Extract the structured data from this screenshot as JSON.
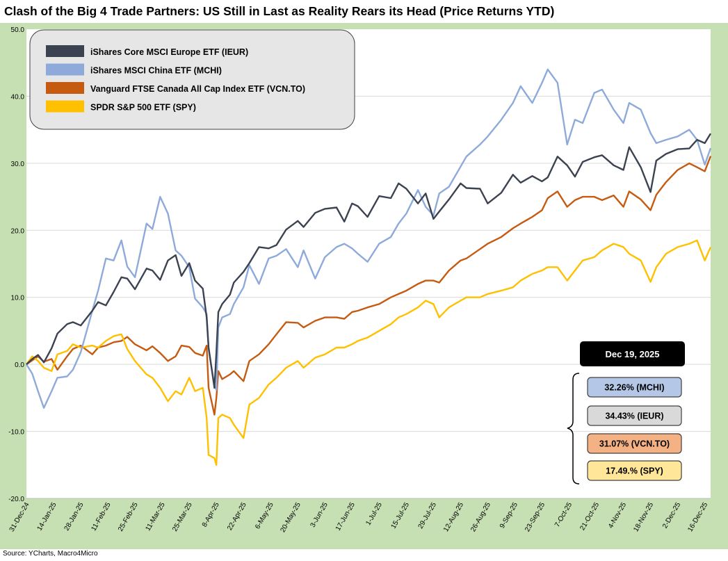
{
  "title": "Clash of the Big 4 Trade Partners: US Still in Last as Reality Rears its Head (Price Returns YTD)",
  "source": "Source: YCharts, Macro4Micro",
  "chart_data": {
    "type": "line",
    "ylim": [
      -20,
      50
    ],
    "yticks": [
      "50.0",
      "40.0",
      "30.0",
      "20.0",
      "10.0",
      "0.0",
      "-10.0",
      "-20.0"
    ],
    "ytick_values": [
      50,
      40,
      30,
      20,
      10,
      0,
      -10,
      -20
    ],
    "x_start": "2024-12-31",
    "x_end": "2025-12-19",
    "xticks": [
      "31-Dec-24",
      "14-Jan-25",
      "28-Jan-25",
      "11-Feb-25",
      "25-Feb-25",
      "11-Mar-25",
      "25-Mar-25",
      "8-Apr-25",
      "22-Apr-25",
      "6-May-25",
      "20-May-25",
      "3-Jun-25",
      "17-Jun-25",
      "1-Jul-25",
      "15-Jul-25",
      "29-Jul-25",
      "12-Aug-25",
      "26-Aug-25",
      "9-Sep-25",
      "23-Sep-25",
      "7-Oct-25",
      "21-Oct-25",
      "4-Nov-25",
      "18-Nov-25",
      "2-Dec-25",
      "16-Dec-25"
    ],
    "grid": true,
    "legend_position": "top-left",
    "background_color": "#c6e0b4",
    "plot_background": "#ffffff",
    "series": [
      {
        "name": "iShares Core MSCI Europe ETF (IEUR)",
        "color": "#3b4250",
        "x": [
          "2024-12-31",
          "2025-01-03",
          "2025-01-06",
          "2025-01-09",
          "2025-01-13",
          "2025-01-16",
          "2025-01-21",
          "2025-01-24",
          "2025-01-28",
          "2025-02-03",
          "2025-02-06",
          "2025-02-10",
          "2025-02-14",
          "2025-02-18",
          "2025-02-21",
          "2025-02-25",
          "2025-03-03",
          "2025-03-06",
          "2025-03-10",
          "2025-03-14",
          "2025-03-18",
          "2025-03-21",
          "2025-03-25",
          "2025-03-28",
          "2025-04-01",
          "2025-04-03",
          "2025-04-04",
          "2025-04-07",
          "2025-04-08",
          "2025-04-09",
          "2025-04-11",
          "2025-04-15",
          "2025-04-17",
          "2025-04-22",
          "2025-04-25",
          "2025-04-30",
          "2025-05-05",
          "2025-05-09",
          "2025-05-14",
          "2025-05-20",
          "2025-05-23",
          "2025-05-29",
          "2025-06-03",
          "2025-06-09",
          "2025-06-13",
          "2025-06-17",
          "2025-06-20",
          "2025-06-25",
          "2025-07-01",
          "2025-07-07",
          "2025-07-11",
          "2025-07-15",
          "2025-07-21",
          "2025-07-25",
          "2025-07-29",
          "2025-08-01",
          "2025-08-06",
          "2025-08-12",
          "2025-08-15",
          "2025-08-22",
          "2025-08-26",
          "2025-09-02",
          "2025-09-08",
          "2025-09-12",
          "2025-09-18",
          "2025-09-23",
          "2025-09-26",
          "2025-10-01",
          "2025-10-06",
          "2025-10-10",
          "2025-10-14",
          "2025-10-20",
          "2025-10-24",
          "2025-10-30",
          "2025-11-04",
          "2025-11-07",
          "2025-11-13",
          "2025-11-18",
          "2025-11-21",
          "2025-11-26",
          "2025-12-02",
          "2025-12-08",
          "2025-12-12",
          "2025-12-16",
          "2025-12-19"
        ],
        "values": [
          0,
          0.8,
          1.4,
          0.3,
          2.4,
          4.6,
          6.0,
          6.3,
          5.8,
          8.0,
          9.3,
          8.8,
          10.8,
          13.0,
          12.8,
          11.2,
          14.3,
          14.0,
          12.6,
          15.5,
          16.3,
          13.2,
          15.1,
          12.5,
          11.3,
          7.0,
          2.5,
          -3.5,
          1.8,
          7.8,
          9.0,
          10.4,
          12.2,
          13.8,
          15.1,
          17.5,
          17.3,
          17.8,
          20.1,
          21.4,
          20.5,
          22.6,
          23.2,
          23.4,
          21.3,
          24.0,
          23.6,
          22.0,
          25.1,
          24.8,
          27.0,
          26.2,
          24.0,
          25.5,
          21.7,
          22.8,
          24.6,
          27.0,
          26.3,
          26.2,
          24.0,
          25.6,
          28.3,
          27.1,
          28.1,
          27.3,
          27.9,
          31.0,
          29.7,
          28.0,
          30.2,
          30.9,
          31.2,
          29.7,
          29.0,
          32.4,
          29.4,
          25.7,
          30.4,
          31.4,
          32.1,
          32.2,
          33.5,
          33.0,
          34.43
        ]
      },
      {
        "name": "iShares MSCI China ETF (MCHI)",
        "color": "#8eaadb",
        "x": [
          "2024-12-31",
          "2025-01-03",
          "2025-01-06",
          "2025-01-09",
          "2025-01-13",
          "2025-01-16",
          "2025-01-21",
          "2025-01-24",
          "2025-01-28",
          "2025-02-03",
          "2025-02-06",
          "2025-02-10",
          "2025-02-14",
          "2025-02-18",
          "2025-02-21",
          "2025-02-25",
          "2025-03-03",
          "2025-03-06",
          "2025-03-10",
          "2025-03-14",
          "2025-03-18",
          "2025-03-21",
          "2025-03-25",
          "2025-03-28",
          "2025-04-01",
          "2025-04-03",
          "2025-04-04",
          "2025-04-07",
          "2025-04-08",
          "2025-04-09",
          "2025-04-11",
          "2025-04-15",
          "2025-04-17",
          "2025-04-22",
          "2025-04-25",
          "2025-04-30",
          "2025-05-05",
          "2025-05-09",
          "2025-05-14",
          "2025-05-20",
          "2025-05-23",
          "2025-05-29",
          "2025-06-03",
          "2025-06-09",
          "2025-06-13",
          "2025-06-17",
          "2025-06-20",
          "2025-06-25",
          "2025-07-01",
          "2025-07-07",
          "2025-07-11",
          "2025-07-15",
          "2025-07-21",
          "2025-07-25",
          "2025-07-29",
          "2025-08-01",
          "2025-08-06",
          "2025-08-12",
          "2025-08-15",
          "2025-08-22",
          "2025-08-26",
          "2025-09-02",
          "2025-09-08",
          "2025-09-12",
          "2025-09-18",
          "2025-09-23",
          "2025-09-26",
          "2025-10-01",
          "2025-10-06",
          "2025-10-10",
          "2025-10-14",
          "2025-10-20",
          "2025-10-24",
          "2025-10-30",
          "2025-11-04",
          "2025-11-07",
          "2025-11-13",
          "2025-11-18",
          "2025-11-21",
          "2025-11-26",
          "2025-12-02",
          "2025-12-08",
          "2025-12-12",
          "2025-12-16",
          "2025-12-19"
        ],
        "values": [
          0,
          -1.4,
          -4.0,
          -6.5,
          -4.0,
          -2.0,
          -1.8,
          -0.8,
          1.8,
          8.0,
          11.0,
          15.8,
          15.5,
          18.5,
          14.6,
          13.0,
          21.0,
          20.2,
          25.0,
          22.5,
          17.0,
          16.2,
          14.5,
          9.8,
          8.5,
          7.5,
          2.3,
          -3.2,
          -3.8,
          5.5,
          7.0,
          7.5,
          9.0,
          11.5,
          14.8,
          12.0,
          15.8,
          16.2,
          17.2,
          14.5,
          17.0,
          12.8,
          16.0,
          17.5,
          18.0,
          17.3,
          16.5,
          15.3,
          18.0,
          19.0,
          21.0,
          22.5,
          26.0,
          23.5,
          22.2,
          25.5,
          26.5,
          29.5,
          31.0,
          32.8,
          34.0,
          36.5,
          39.0,
          41.5,
          39.0,
          42.0,
          44.0,
          42.0,
          32.8,
          36.5,
          36.0,
          40.5,
          41.0,
          38.0,
          36.0,
          39.0,
          38.0,
          34.5,
          33.0,
          33.5,
          34.0,
          35.0,
          33.5,
          29.8,
          32.26
        ]
      },
      {
        "name": "Vanguard FTSE Canada All Cap Index ETF (VCN.TO)",
        "color": "#c55a11",
        "x": [
          "2024-12-31",
          "2025-01-03",
          "2025-01-06",
          "2025-01-09",
          "2025-01-13",
          "2025-01-16",
          "2025-01-21",
          "2025-01-24",
          "2025-01-28",
          "2025-02-03",
          "2025-02-06",
          "2025-02-10",
          "2025-02-14",
          "2025-02-18",
          "2025-02-21",
          "2025-02-25",
          "2025-03-03",
          "2025-03-06",
          "2025-03-10",
          "2025-03-14",
          "2025-03-18",
          "2025-03-21",
          "2025-03-25",
          "2025-03-28",
          "2025-04-01",
          "2025-04-03",
          "2025-04-04",
          "2025-04-07",
          "2025-04-08",
          "2025-04-09",
          "2025-04-11",
          "2025-04-15",
          "2025-04-17",
          "2025-04-22",
          "2025-04-25",
          "2025-04-30",
          "2025-05-05",
          "2025-05-09",
          "2025-05-14",
          "2025-05-20",
          "2025-05-23",
          "2025-05-29",
          "2025-06-03",
          "2025-06-09",
          "2025-06-13",
          "2025-06-17",
          "2025-06-20",
          "2025-06-25",
          "2025-07-01",
          "2025-07-07",
          "2025-07-11",
          "2025-07-15",
          "2025-07-21",
          "2025-07-25",
          "2025-07-29",
          "2025-08-01",
          "2025-08-06",
          "2025-08-12",
          "2025-08-15",
          "2025-08-22",
          "2025-08-26",
          "2025-09-02",
          "2025-09-08",
          "2025-09-12",
          "2025-09-18",
          "2025-09-23",
          "2025-09-26",
          "2025-10-01",
          "2025-10-06",
          "2025-10-10",
          "2025-10-14",
          "2025-10-20",
          "2025-10-24",
          "2025-10-30",
          "2025-11-04",
          "2025-11-07",
          "2025-11-13",
          "2025-11-18",
          "2025-11-21",
          "2025-11-26",
          "2025-12-02",
          "2025-12-08",
          "2025-12-12",
          "2025-12-16",
          "2025-12-19"
        ],
        "values": [
          0,
          0.6,
          1.2,
          0.4,
          0.8,
          -0.8,
          1.2,
          2.3,
          2.8,
          1.5,
          2.5,
          2.8,
          3.3,
          3.5,
          4.1,
          3.0,
          2.1,
          2.7,
          1.7,
          0.5,
          1.2,
          2.8,
          2.6,
          1.7,
          1.3,
          2.8,
          -3.5,
          -7.5,
          -5.0,
          -1.0,
          -2.2,
          -1.5,
          -1.0,
          -2.5,
          0.5,
          1.5,
          3.0,
          4.5,
          6.3,
          6.2,
          5.5,
          6.5,
          7.0,
          7.0,
          6.8,
          7.8,
          8.0,
          8.5,
          9.0,
          10.0,
          10.5,
          11.0,
          12.0,
          12.5,
          12.5,
          12.2,
          14.0,
          15.5,
          15.8,
          17.2,
          18.0,
          19.0,
          20.3,
          21.0,
          22.0,
          23.0,
          24.8,
          25.8,
          23.5,
          24.5,
          25.0,
          25.0,
          24.5,
          25.2,
          23.5,
          25.8,
          24.6,
          23.0,
          25.3,
          27.2,
          29.0,
          30.0,
          29.4,
          28.8,
          31.07
        ]
      },
      {
        "name": "SPDR S&P 500 ETF (SPY)",
        "color": "#ffc000",
        "x": [
          "2024-12-31",
          "2025-01-03",
          "2025-01-06",
          "2025-01-09",
          "2025-01-13",
          "2025-01-16",
          "2025-01-21",
          "2025-01-24",
          "2025-01-28",
          "2025-02-03",
          "2025-02-06",
          "2025-02-10",
          "2025-02-14",
          "2025-02-18",
          "2025-02-21",
          "2025-02-25",
          "2025-03-03",
          "2025-03-06",
          "2025-03-10",
          "2025-03-14",
          "2025-03-18",
          "2025-03-21",
          "2025-03-25",
          "2025-03-28",
          "2025-04-01",
          "2025-04-03",
          "2025-04-04",
          "2025-04-07",
          "2025-04-08",
          "2025-04-09",
          "2025-04-11",
          "2025-04-15",
          "2025-04-17",
          "2025-04-22",
          "2025-04-25",
          "2025-04-30",
          "2025-05-05",
          "2025-05-09",
          "2025-05-14",
          "2025-05-20",
          "2025-05-23",
          "2025-05-29",
          "2025-06-03",
          "2025-06-09",
          "2025-06-13",
          "2025-06-17",
          "2025-06-20",
          "2025-06-25",
          "2025-07-01",
          "2025-07-07",
          "2025-07-11",
          "2025-07-15",
          "2025-07-21",
          "2025-07-25",
          "2025-07-29",
          "2025-08-01",
          "2025-08-06",
          "2025-08-12",
          "2025-08-15",
          "2025-08-22",
          "2025-08-26",
          "2025-09-02",
          "2025-09-08",
          "2025-09-12",
          "2025-09-18",
          "2025-09-23",
          "2025-09-26",
          "2025-10-01",
          "2025-10-06",
          "2025-10-10",
          "2025-10-14",
          "2025-10-20",
          "2025-10-24",
          "2025-10-30",
          "2025-11-04",
          "2025-11-07",
          "2025-11-13",
          "2025-11-18",
          "2025-11-21",
          "2025-11-26",
          "2025-12-02",
          "2025-12-08",
          "2025-12-12",
          "2025-12-16",
          "2025-12-19"
        ],
        "values": [
          0,
          1.2,
          0.5,
          -0.5,
          -1.0,
          1.5,
          2.0,
          3.0,
          2.5,
          2.8,
          2.5,
          3.5,
          4.2,
          4.5,
          2.3,
          0.5,
          -1.5,
          -2.0,
          -3.5,
          -5.5,
          -4.0,
          -4.5,
          -2.0,
          -4.0,
          -3.5,
          -8.0,
          -13.5,
          -14.0,
          -15.0,
          -8.0,
          -7.5,
          -8.0,
          -9.0,
          -11.0,
          -6.0,
          -5.0,
          -3.0,
          -2.0,
          -0.5,
          0.5,
          -0.5,
          1.0,
          1.5,
          2.5,
          2.5,
          3.0,
          3.5,
          4.0,
          5.0,
          6.0,
          7.0,
          7.5,
          8.5,
          9.5,
          9.0,
          7.0,
          8.5,
          9.5,
          10.0,
          10.0,
          10.5,
          11.0,
          11.5,
          12.5,
          13.5,
          14.0,
          14.5,
          14.5,
          12.5,
          14.0,
          15.5,
          16.0,
          17.0,
          18.0,
          17.5,
          16.5,
          15.5,
          12.3,
          14.5,
          16.5,
          17.5,
          18.0,
          18.5,
          15.5,
          17.49
        ]
      }
    ],
    "annotation_date": "Dec 19, 2025",
    "annotation_labels": [
      {
        "text": "32.26% (MCHI)",
        "fill": "#b4c7e7"
      },
      {
        "text": "34.43% (IEUR)",
        "fill": "#d9d9d9"
      },
      {
        "text": "31.07% (VCN.TO)",
        "fill": "#f4b183"
      },
      {
        "text": "17.49.% (SPY)",
        "fill": "#ffe699"
      }
    ]
  }
}
